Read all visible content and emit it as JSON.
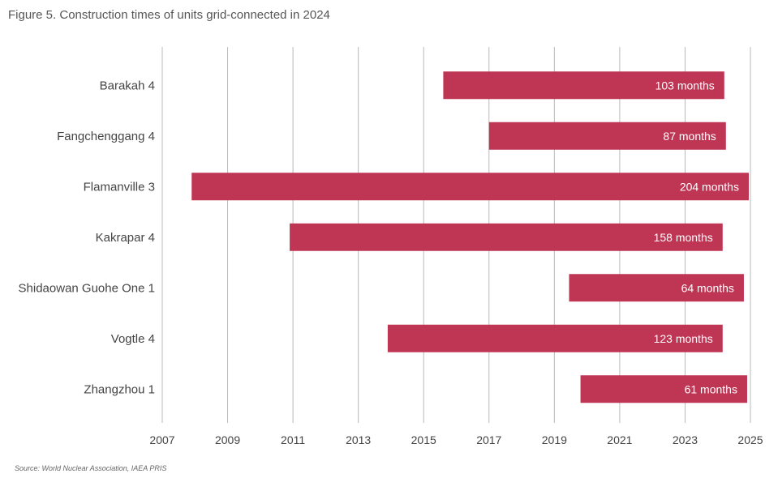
{
  "figure": {
    "title": "Figure 5. Construction times of units grid-connected in 2024",
    "source": "Source: World Nuclear Association, IAEA PRIS"
  },
  "chart_data": {
    "type": "bar",
    "orientation": "horizontal-range",
    "title": "Figure 5. Construction times of units grid-connected in 2024",
    "xlim": [
      2007,
      2025
    ],
    "x_ticks": [
      2007,
      2009,
      2011,
      2013,
      2015,
      2017,
      2019,
      2021,
      2023,
      2025
    ],
    "grid": "vertical",
    "bar_color": "#bf3554",
    "categories": [
      "Barakah 4",
      "Fangchenggang 4",
      "Flamanville 3",
      "Kakrapar 4",
      "Shidaowan Guohe One 1",
      "Vogtle 4",
      "Zhangzhou 1"
    ],
    "series": [
      {
        "start": [
          2015.6,
          2017.0,
          2007.9,
          2010.9,
          2019.45,
          2013.9,
          2019.8
        ],
        "end": [
          2024.2,
          2024.25,
          2024.95,
          2024.15,
          2024.8,
          2024.15,
          2024.9
        ],
        "labels": [
          "103 months",
          "87 months",
          "204 months",
          "158 months",
          "64 months",
          "123 months",
          "61 months"
        ]
      }
    ]
  }
}
